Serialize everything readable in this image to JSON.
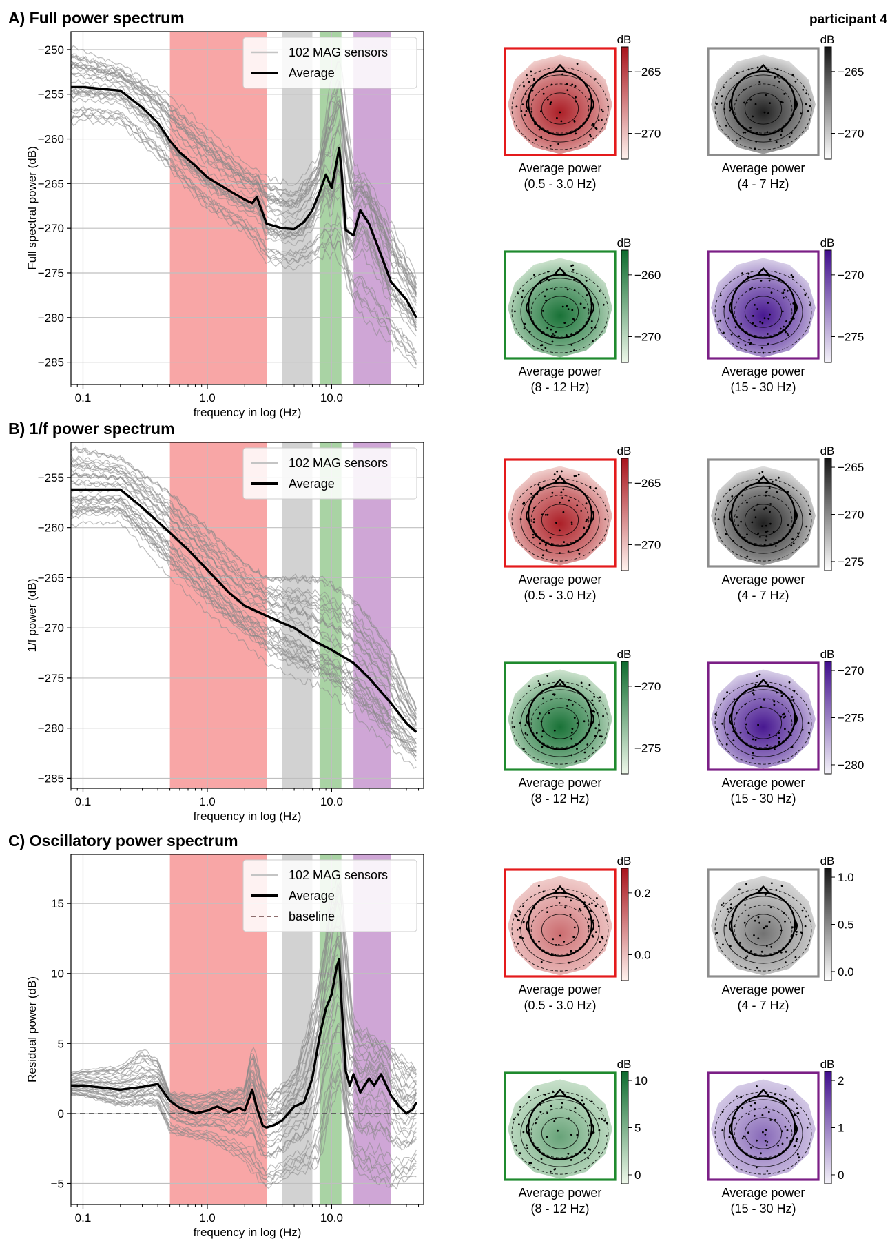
{
  "figure": {
    "participant_label": "participant 4",
    "band_colors": {
      "delta": "#f8a6a6",
      "theta": "#d2d2d2",
      "alpha": "#a9d3a4",
      "beta": "#cfa6d6"
    },
    "sensor_color": "#888888",
    "average_color": "#000000"
  },
  "chart_data": [
    {
      "id": "A",
      "type": "line",
      "title": "A) Full power spectrum",
      "xlabel": "frequency in log (Hz)",
      "ylabel": "Full spectral power (dB)",
      "xscale": "log",
      "xlim": [
        0.08,
        55
      ],
      "ylim": [
        -287.5,
        -248
      ],
      "xticks": [
        {
          "value": 0.1,
          "label": "0.1"
        },
        {
          "value": 1,
          "label": "1.0"
        },
        {
          "value": 10,
          "label": "10.0"
        }
      ],
      "yticks": [
        {
          "value": -250,
          "label": "−250"
        },
        {
          "value": -255,
          "label": "−255"
        },
        {
          "value": -260,
          "label": "−260"
        },
        {
          "value": -265,
          "label": "−265"
        },
        {
          "value": -270,
          "label": "−270"
        },
        {
          "value": -275,
          "label": "−275"
        },
        {
          "value": -280,
          "label": "−280"
        },
        {
          "value": -285,
          "label": "−285"
        }
      ],
      "grid": true,
      "bands": [
        {
          "name": "delta",
          "range": [
            0.5,
            3.0
          ]
        },
        {
          "name": "theta",
          "range": [
            4,
            7
          ]
        },
        {
          "name": "alpha",
          "range": [
            8,
            12
          ]
        },
        {
          "name": "beta",
          "range": [
            15,
            30
          ]
        }
      ],
      "legend": {
        "position": "top-right",
        "entries": [
          "102 MAG sensors",
          "Average"
        ]
      },
      "average": {
        "x": [
          0.08,
          0.1,
          0.2,
          0.3,
          0.4,
          0.5,
          0.6,
          0.8,
          1.0,
          1.5,
          2.0,
          2.3,
          2.5,
          3.0,
          4.0,
          5.0,
          6.0,
          7.0,
          8.0,
          9.0,
          10.0,
          11.0,
          11.5,
          12.0,
          13.0,
          15.0,
          17.0,
          20.0,
          25.0,
          30.0,
          40.0,
          48.0
        ],
        "y": [
          -254.2,
          -254.2,
          -254.6,
          -256.5,
          -258.2,
          -260.2,
          -261.5,
          -263.0,
          -264.3,
          -265.8,
          -266.8,
          -267.2,
          -266.5,
          -269.5,
          -270.0,
          -270.1,
          -269.3,
          -268.0,
          -266.0,
          -264.0,
          -265.5,
          -262.5,
          -261.0,
          -263.5,
          -270.2,
          -270.8,
          -268.0,
          -269.5,
          -273.0,
          -276.0,
          -278.0,
          -280.0
        ]
      },
      "sensor_spread": {
        "x": [
          0.08,
          0.1,
          0.2,
          0.5,
          1.0,
          2.0,
          3.0,
          5.0,
          8.0,
          10.0,
          12.0,
          15.0,
          20.0,
          30.0,
          48.0
        ],
        "upper": [
          -249.5,
          -250.0,
          -251.5,
          -255.0,
          -258.5,
          -262.5,
          -264.0,
          -265.0,
          -261.5,
          -252.0,
          -251.0,
          -262.5,
          -264.5,
          -269.0,
          -275.0
        ],
        "lower": [
          -258.5,
          -258.0,
          -258.5,
          -263.5,
          -268.0,
          -270.5,
          -274.0,
          -274.5,
          -273.5,
          -273.0,
          -274.0,
          -279.0,
          -281.0,
          -283.0,
          -286.0
        ]
      }
    },
    {
      "id": "B",
      "type": "line",
      "title": "B) 1/f power spectrum",
      "xlabel": "frequency in log (Hz)",
      "ylabel": "1/f power (dB)",
      "xscale": "log",
      "xlim": [
        0.08,
        55
      ],
      "ylim": [
        -286,
        -251.5
      ],
      "xticks": [
        {
          "value": 0.1,
          "label": "0.1"
        },
        {
          "value": 1,
          "label": "1.0"
        },
        {
          "value": 10,
          "label": "10.0"
        }
      ],
      "yticks": [
        {
          "value": -255,
          "label": "−255"
        },
        {
          "value": -260,
          "label": "−260"
        },
        {
          "value": -265,
          "label": "−265"
        },
        {
          "value": -270,
          "label": "−270"
        },
        {
          "value": -275,
          "label": "−275"
        },
        {
          "value": -280,
          "label": "−280"
        },
        {
          "value": -285,
          "label": "−285"
        }
      ],
      "grid": true,
      "bands": [
        {
          "name": "delta",
          "range": [
            0.5,
            3.0
          ]
        },
        {
          "name": "theta",
          "range": [
            4,
            7
          ]
        },
        {
          "name": "alpha",
          "range": [
            8,
            12
          ]
        },
        {
          "name": "beta",
          "range": [
            15,
            30
          ]
        }
      ],
      "legend": {
        "position": "top-right",
        "entries": [
          "102 MAG sensors",
          "Average"
        ]
      },
      "average": {
        "x": [
          0.08,
          0.1,
          0.2,
          0.3,
          0.5,
          0.7,
          1.0,
          1.5,
          2.0,
          3.0,
          4.0,
          5.0,
          7.0,
          10.0,
          15.0,
          20.0,
          30.0,
          40.0,
          48.0
        ],
        "y": [
          -256.2,
          -256.2,
          -256.2,
          -258.0,
          -260.5,
          -262.2,
          -264.2,
          -266.5,
          -267.8,
          -268.8,
          -269.5,
          -270.0,
          -271.2,
          -272.2,
          -273.5,
          -275.0,
          -277.5,
          -279.5,
          -280.4
        ]
      },
      "sensor_spread": {
        "x": [
          0.08,
          0.1,
          0.2,
          0.5,
          1.0,
          2.0,
          3.0,
          5.0,
          8.0,
          10.0,
          15.0,
          20.0,
          30.0,
          48.0
        ],
        "upper": [
          -252.0,
          -252.2,
          -253.0,
          -256.5,
          -260.0,
          -263.5,
          -265.0,
          -265.0,
          -265.0,
          -265.5,
          -267.0,
          -269.0,
          -272.0,
          -278.0
        ],
        "lower": [
          -260.0,
          -259.5,
          -259.5,
          -265.0,
          -268.5,
          -271.5,
          -273.5,
          -275.0,
          -275.8,
          -276.5,
          -278.5,
          -280.0,
          -282.0,
          -284.0
        ]
      }
    },
    {
      "id": "C",
      "type": "line",
      "title": "C) Oscillatory power spectrum",
      "xlabel": "frequency in log (Hz)",
      "ylabel": "Residual power (dB)",
      "xscale": "log",
      "xlim": [
        0.08,
        55
      ],
      "ylim": [
        -6.5,
        18.5
      ],
      "xticks": [
        {
          "value": 0.1,
          "label": "0.1"
        },
        {
          "value": 1,
          "label": "1.0"
        },
        {
          "value": 10,
          "label": "10.0"
        }
      ],
      "yticks": [
        {
          "value": 15,
          "label": "15"
        },
        {
          "value": 10,
          "label": "10"
        },
        {
          "value": 5,
          "label": "5"
        },
        {
          "value": 0,
          "label": "0"
        },
        {
          "value": -5,
          "label": "−5"
        }
      ],
      "grid": true,
      "bands": [
        {
          "name": "delta",
          "range": [
            0.5,
            3.0
          ]
        },
        {
          "name": "theta",
          "range": [
            4,
            7
          ]
        },
        {
          "name": "alpha",
          "range": [
            8,
            12
          ]
        },
        {
          "name": "beta",
          "range": [
            15,
            30
          ]
        }
      ],
      "legend": {
        "position": "top-right",
        "entries": [
          "102 MAG sensors",
          "Average",
          "baseline"
        ]
      },
      "baseline": 0,
      "average": {
        "x": [
          0.08,
          0.1,
          0.2,
          0.3,
          0.4,
          0.5,
          0.6,
          0.8,
          1.0,
          1.2,
          1.5,
          1.8,
          2.0,
          2.3,
          2.5,
          2.8,
          3.0,
          3.5,
          4.0,
          5.0,
          6.0,
          7.0,
          8.0,
          9.0,
          10.0,
          11.0,
          11.5,
          12.0,
          13.0,
          14.0,
          15.0,
          17.0,
          20.0,
          22.0,
          25.0,
          30.0,
          35.0,
          40.0,
          45.0,
          48.0
        ],
        "y": [
          2.0,
          2.0,
          1.7,
          1.9,
          2.1,
          0.9,
          0.4,
          0.0,
          0.2,
          0.5,
          0.1,
          0.4,
          0.2,
          1.7,
          0.4,
          -0.9,
          -1.0,
          -0.8,
          -0.5,
          0.5,
          0.8,
          2.5,
          5.5,
          7.5,
          8.5,
          10.5,
          11.0,
          8.0,
          3.0,
          2.0,
          2.8,
          1.5,
          2.5,
          2.0,
          2.8,
          1.3,
          0.5,
          0.0,
          0.3,
          0.8
        ]
      },
      "sensor_spread": {
        "x": [
          0.08,
          0.1,
          0.2,
          0.3,
          0.4,
          0.5,
          1.0,
          2.0,
          2.3,
          3.0,
          5.0,
          8.0,
          10.0,
          12.0,
          15.0,
          20.0,
          30.0,
          48.0
        ],
        "upper": [
          3.0,
          3.2,
          3.5,
          4.8,
          4.0,
          1.5,
          1.5,
          2.0,
          5.2,
          1.5,
          3.0,
          10.0,
          16.5,
          17.5,
          7.0,
          6.0,
          5.0,
          3.5
        ],
        "lower": [
          1.3,
          1.2,
          0.5,
          0.6,
          0.5,
          -1.5,
          -2.0,
          -3.5,
          -4.5,
          -5.5,
          -4.5,
          -4.0,
          0.5,
          1.5,
          -4.0,
          -5.0,
          -5.5,
          -4.5
        ]
      }
    }
  ],
  "topomaps": {
    "unit": "dB",
    "caption_prefix": "Average power",
    "captions": [
      "(0.5 - 3.0 Hz)",
      "(4 - 7 Hz)",
      "(8 - 12 Hz)",
      "(15 - 30 Hz)"
    ],
    "rows": [
      {
        "panel": "A",
        "maps": [
          {
            "band": "delta",
            "cmap": "red",
            "ticks": [
              "−265",
              "−270"
            ]
          },
          {
            "band": "theta",
            "cmap": "gray",
            "ticks": [
              "−265",
              "−270"
            ]
          },
          {
            "band": "alpha",
            "cmap": "green",
            "ticks": [
              "−260",
              "−270"
            ]
          },
          {
            "band": "beta",
            "cmap": "purple",
            "ticks": [
              "−270",
              "−275"
            ]
          }
        ]
      },
      {
        "panel": "B",
        "maps": [
          {
            "band": "delta",
            "cmap": "red",
            "ticks": [
              "−265",
              "−270"
            ]
          },
          {
            "band": "theta",
            "cmap": "gray",
            "ticks": [
              "−265",
              "−270",
              "−275"
            ]
          },
          {
            "band": "alpha",
            "cmap": "green",
            "ticks": [
              "−270",
              "−275"
            ]
          },
          {
            "band": "beta",
            "cmap": "purple",
            "ticks": [
              "−270",
              "−275",
              "−280"
            ]
          }
        ]
      },
      {
        "panel": "C",
        "maps": [
          {
            "band": "delta",
            "cmap": "red",
            "ticks": [
              "0.2",
              "0.0"
            ]
          },
          {
            "band": "theta",
            "cmap": "gray",
            "ticks": [
              "1.0",
              "0.5",
              "0.0"
            ]
          },
          {
            "band": "alpha",
            "cmap": "green",
            "ticks": [
              "10",
              "5",
              "0"
            ]
          },
          {
            "band": "beta",
            "cmap": "purple",
            "ticks": [
              "2",
              "1",
              "0"
            ]
          }
        ]
      }
    ],
    "colormaps": {
      "red": {
        "light": "#fff2ee",
        "dark": "#a8141c",
        "frame": "#e41a1c"
      },
      "gray": {
        "light": "#ffffff",
        "dark": "#141414",
        "frame": "#8c8c8c"
      },
      "green": {
        "light": "#eef8ea",
        "dark": "#0e6b2e",
        "frame": "#1f8a2e"
      },
      "purple": {
        "light": "#f4f2f9",
        "dark": "#3f0d8c",
        "frame": "#7b1f86"
      }
    }
  }
}
